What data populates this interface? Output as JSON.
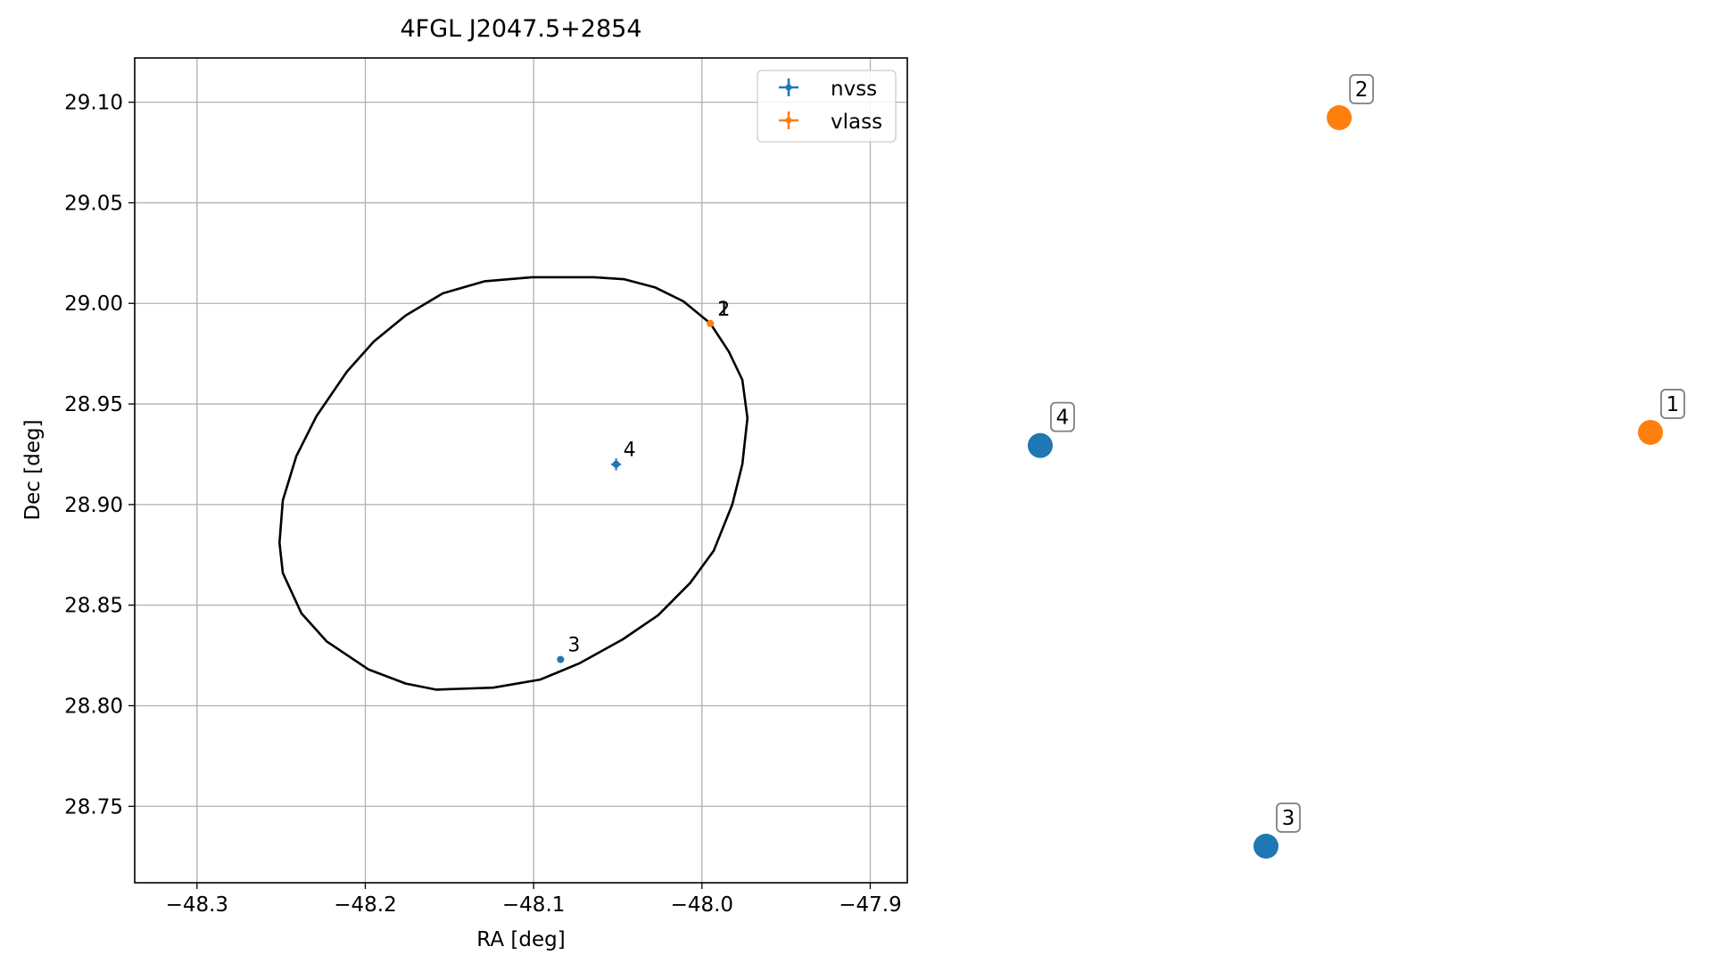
{
  "chart_data": [
    {
      "type": "scatter",
      "title": "4FGL J2047.5+2854",
      "xlabel": "RA [deg]",
      "ylabel": "Dec [deg]",
      "xlim": [
        -48.337,
        -47.878
      ],
      "ylim": [
        28.712,
        29.122
      ],
      "xticks": [
        -48.3,
        -48.2,
        -48.1,
        -48.0,
        -47.9
      ],
      "yticks": [
        28.75,
        28.8,
        28.85,
        28.9,
        28.95,
        29.0,
        29.05,
        29.1
      ],
      "xtick_labels": [
        "−48.3",
        "−48.2",
        "−48.1",
        "−48.0",
        "−47.9"
      ],
      "ytick_labels": [
        "28.75",
        "28.80",
        "28.85",
        "28.90",
        "28.95",
        "29.00",
        "29.05",
        "29.10"
      ],
      "grid": true,
      "legend_position": "top-right",
      "series": [
        {
          "name": "nvss",
          "color": "#1f77b4",
          "points": [
            {
              "label": "3",
              "x": -48.084,
              "y": 28.823,
              "xerr": 0.002,
              "yerr": 0.0015
            },
            {
              "label": "4",
              "x": -48.051,
              "y": 28.92,
              "xerr": 0.003,
              "yerr": 0.003
            }
          ]
        },
        {
          "name": "vlass",
          "color": "#ff7f0e",
          "points": [
            {
              "label": "1",
              "x": -47.995,
              "y": 28.99,
              "xerr": 0.0007,
              "yerr": 0.0007
            },
            {
              "label": "2",
              "x": -47.995,
              "y": 28.99,
              "xerr": 0.0007,
              "yerr": 0.0007
            }
          ]
        }
      ],
      "ellipse": {
        "description": "4FGL 95% error ellipse",
        "color": "#000000",
        "points": [
          [
            -48.064,
            29.013
          ],
          [
            -48.046,
            29.012
          ],
          [
            -48.028,
            29.008
          ],
          [
            -48.011,
            29.001
          ],
          [
            -47.995,
            28.99
          ],
          [
            -47.984,
            28.976
          ],
          [
            -47.976,
            28.962
          ],
          [
            -47.973,
            28.943
          ],
          [
            -47.976,
            28.92
          ],
          [
            -47.982,
            28.9
          ],
          [
            -47.993,
            28.877
          ],
          [
            -48.007,
            28.861
          ],
          [
            -48.026,
            28.845
          ],
          [
            -48.047,
            28.833
          ],
          [
            -48.073,
            28.821
          ],
          [
            -48.096,
            28.813
          ],
          [
            -48.124,
            28.809
          ],
          [
            -48.158,
            28.808
          ],
          [
            -48.176,
            28.811
          ],
          [
            -48.198,
            28.818
          ],
          [
            -48.223,
            28.832
          ],
          [
            -48.238,
            28.846
          ],
          [
            -48.249,
            28.866
          ],
          [
            -48.251,
            28.881
          ],
          [
            -48.249,
            28.902
          ],
          [
            -48.241,
            28.924
          ],
          [
            -48.229,
            28.944
          ],
          [
            -48.211,
            28.966
          ],
          [
            -48.195,
            28.981
          ],
          [
            -48.176,
            28.994
          ],
          [
            -48.154,
            29.005
          ],
          [
            -48.129,
            29.011
          ],
          [
            -48.101,
            29.013
          ],
          [
            -48.064,
            29.013
          ]
        ]
      }
    },
    {
      "type": "scatter",
      "title": "",
      "axes": "off",
      "series": [
        {
          "name": "nvss",
          "color": "#1f77b4",
          "points": [
            {
              "label": "4",
              "x": 0.0,
              "y": 0.55
            },
            {
              "label": "3",
              "x": 0.37,
              "y": 0.0
            }
          ]
        },
        {
          "name": "vlass",
          "color": "#ff7f0e",
          "points": [
            {
              "label": "2",
              "x": 0.49,
              "y": 1.0
            },
            {
              "label": "1",
              "x": 1.0,
              "y": 0.568
            }
          ]
        }
      ]
    }
  ]
}
